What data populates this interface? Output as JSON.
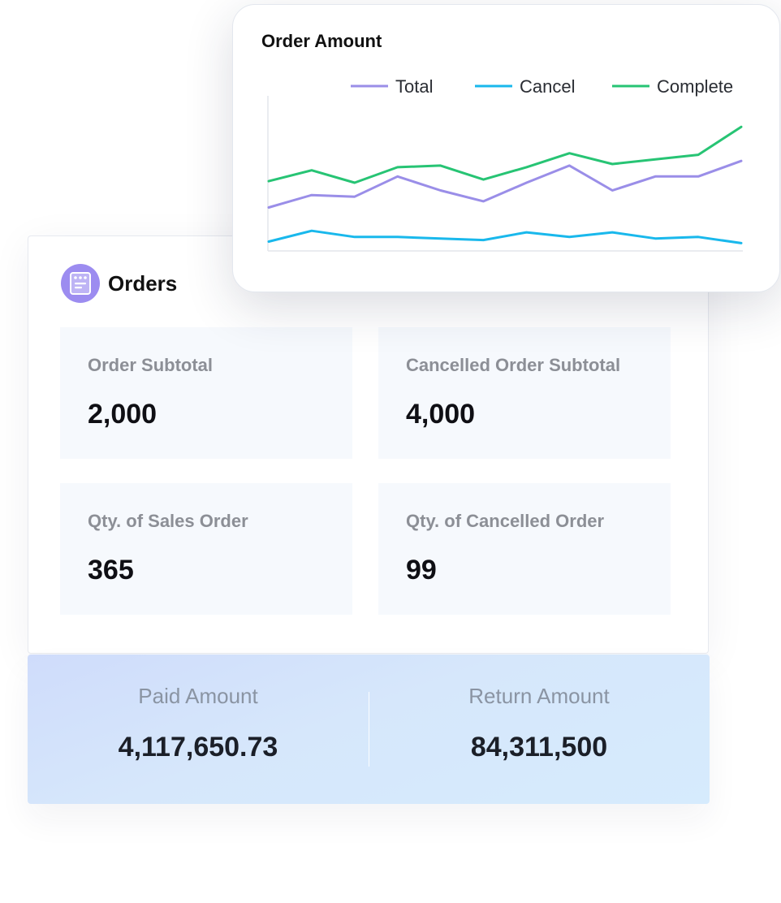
{
  "orders": {
    "title": "Orders",
    "icon": "calendar-list-icon",
    "accent": "#9c8cf0",
    "stats": [
      {
        "label": "Order Subtotal",
        "value": "2,000"
      },
      {
        "label": "Cancelled Order Subtotal",
        "value": "4,000"
      },
      {
        "label": "Qty. of Sales Order",
        "value": "365"
      },
      {
        "label": "Qty. of Cancelled Order",
        "value": "99"
      }
    ]
  },
  "amounts": {
    "paid_label": "Paid Amount",
    "paid_value": "4,117,650.73",
    "return_label": "Return Amount",
    "return_value": "84,311,500"
  },
  "chart_data": {
    "type": "line",
    "title": "Order Amount",
    "legend_position": "top",
    "grid": false,
    "ylim": [
      0,
      100
    ],
    "x": [
      1,
      2,
      3,
      4,
      5,
      6,
      7,
      8,
      9,
      10,
      11,
      12
    ],
    "series": [
      {
        "name": "Total",
        "color": "#9a8ee8",
        "values": [
          28,
          36,
          35,
          48,
          39,
          32,
          44,
          55,
          39,
          48,
          48,
          58
        ]
      },
      {
        "name": "Cancel",
        "color": "#19b8ec",
        "values": [
          6,
          13,
          9,
          9,
          8,
          7,
          12,
          9,
          12,
          8,
          9,
          5
        ]
      },
      {
        "name": "Complete",
        "color": "#27c474",
        "values": [
          45,
          52,
          44,
          54,
          55,
          46,
          54,
          63,
          56,
          59,
          62,
          80
        ]
      }
    ]
  }
}
